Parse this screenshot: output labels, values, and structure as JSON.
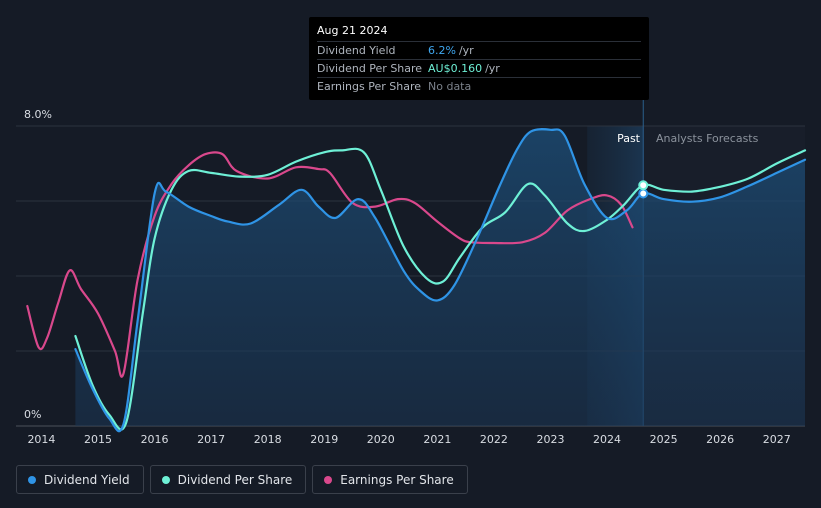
{
  "tooltip": {
    "date": "Aug 21 2024",
    "rows": [
      {
        "label": "Dividend Yield",
        "value": "6.2%",
        "unit": "/yr",
        "color": "#3fa6ee"
      },
      {
        "label": "Dividend Per Share",
        "value": "AU$0.160",
        "unit": "/yr",
        "color": "#6ef0d6"
      },
      {
        "label": "Earnings Per Share",
        "value": "No data",
        "unit": "",
        "color": "#7b818a"
      }
    ]
  },
  "regions": {
    "past": "Past",
    "forecast": "Analysts Forecasts"
  },
  "legend": [
    {
      "label": "Dividend Yield",
      "color": "#2f94e6"
    },
    {
      "label": "Dividend Per Share",
      "color": "#6ef0d6"
    },
    {
      "label": "Earnings Per Share",
      "color": "#d9488c"
    }
  ],
  "chart_data": {
    "type": "line",
    "y_tick_labels": [
      "8.0%",
      "0%"
    ],
    "ylim": [
      0,
      8
    ],
    "xlim": [
      2013.55,
      2027.5
    ],
    "x_ticks": [
      2014,
      2015,
      2016,
      2017,
      2018,
      2019,
      2020,
      2021,
      2022,
      2023,
      2024,
      2025,
      2026,
      2027
    ],
    "today": 2024.64,
    "past_band_start": 2023.65,
    "gridlines": [
      0,
      2,
      4,
      6,
      8
    ],
    "series": [
      {
        "name": "Dividend Yield",
        "color": "#2f94e6",
        "fill": true,
        "points": [
          [
            2014.6,
            2.05
          ],
          [
            2014.9,
            1.0
          ],
          [
            2015.2,
            0.2
          ],
          [
            2015.45,
            0.05
          ],
          [
            2015.7,
            2.8
          ],
          [
            2016.0,
            6.2
          ],
          [
            2016.2,
            6.25
          ],
          [
            2016.6,
            5.85
          ],
          [
            2017.0,
            5.6
          ],
          [
            2017.3,
            5.45
          ],
          [
            2017.7,
            5.4
          ],
          [
            2018.2,
            5.9
          ],
          [
            2018.6,
            6.3
          ],
          [
            2018.9,
            5.85
          ],
          [
            2019.2,
            5.55
          ],
          [
            2019.6,
            6.05
          ],
          [
            2019.9,
            5.55
          ],
          [
            2020.4,
            4.15
          ],
          [
            2020.7,
            3.6
          ],
          [
            2021.0,
            3.35
          ],
          [
            2021.3,
            3.75
          ],
          [
            2021.7,
            5.0
          ],
          [
            2022.1,
            6.4
          ],
          [
            2022.4,
            7.35
          ],
          [
            2022.65,
            7.85
          ],
          [
            2023.0,
            7.9
          ],
          [
            2023.25,
            7.75
          ],
          [
            2023.6,
            6.45
          ],
          [
            2024.0,
            5.55
          ],
          [
            2024.35,
            5.75
          ],
          [
            2024.64,
            6.2
          ],
          [
            2025.0,
            6.05
          ],
          [
            2025.5,
            5.98
          ],
          [
            2026.0,
            6.1
          ],
          [
            2026.5,
            6.4
          ],
          [
            2027.0,
            6.75
          ],
          [
            2027.5,
            7.1
          ]
        ]
      },
      {
        "name": "Dividend Per Share",
        "color": "#6ef0d6",
        "points": [
          [
            2014.6,
            2.4
          ],
          [
            2014.9,
            1.1
          ],
          [
            2015.2,
            0.3
          ],
          [
            2015.5,
            0.1
          ],
          [
            2015.8,
            3.1
          ],
          [
            2016.0,
            5.0
          ],
          [
            2016.3,
            6.3
          ],
          [
            2016.6,
            6.8
          ],
          [
            2017.0,
            6.75
          ],
          [
            2017.5,
            6.65
          ],
          [
            2018.0,
            6.7
          ],
          [
            2018.5,
            7.05
          ],
          [
            2019.0,
            7.3
          ],
          [
            2019.3,
            7.35
          ],
          [
            2019.7,
            7.3
          ],
          [
            2020.0,
            6.3
          ],
          [
            2020.4,
            4.8
          ],
          [
            2020.8,
            3.95
          ],
          [
            2021.1,
            3.85
          ],
          [
            2021.4,
            4.5
          ],
          [
            2021.8,
            5.3
          ],
          [
            2022.2,
            5.7
          ],
          [
            2022.6,
            6.45
          ],
          [
            2022.9,
            6.15
          ],
          [
            2023.3,
            5.4
          ],
          [
            2023.6,
            5.2
          ],
          [
            2024.0,
            5.5
          ],
          [
            2024.3,
            5.9
          ],
          [
            2024.64,
            6.42
          ],
          [
            2025.0,
            6.3
          ],
          [
            2025.5,
            6.25
          ],
          [
            2026.0,
            6.38
          ],
          [
            2026.5,
            6.6
          ],
          [
            2027.0,
            7.0
          ],
          [
            2027.5,
            7.35
          ]
        ]
      },
      {
        "name": "Earnings Per Share",
        "color": "#d9488c",
        "points": [
          [
            2013.75,
            3.2
          ],
          [
            2013.95,
            2.1
          ],
          [
            2014.1,
            2.35
          ],
          [
            2014.3,
            3.3
          ],
          [
            2014.5,
            4.15
          ],
          [
            2014.7,
            3.65
          ],
          [
            2015.0,
            3.0
          ],
          [
            2015.3,
            2.0
          ],
          [
            2015.45,
            1.4
          ],
          [
            2015.7,
            3.9
          ],
          [
            2016.0,
            5.6
          ],
          [
            2016.3,
            6.45
          ],
          [
            2016.6,
            6.95
          ],
          [
            2016.9,
            7.25
          ],
          [
            2017.2,
            7.25
          ],
          [
            2017.45,
            6.8
          ],
          [
            2018.0,
            6.6
          ],
          [
            2018.5,
            6.9
          ],
          [
            2018.9,
            6.85
          ],
          [
            2019.1,
            6.75
          ],
          [
            2019.5,
            5.95
          ],
          [
            2019.9,
            5.85
          ],
          [
            2020.3,
            6.05
          ],
          [
            2020.6,
            5.95
          ],
          [
            2021.0,
            5.45
          ],
          [
            2021.4,
            5.0
          ],
          [
            2021.6,
            4.9
          ],
          [
            2022.0,
            4.88
          ],
          [
            2022.5,
            4.9
          ],
          [
            2022.9,
            5.15
          ],
          [
            2023.3,
            5.75
          ],
          [
            2023.7,
            6.05
          ],
          [
            2024.0,
            6.15
          ],
          [
            2024.25,
            5.9
          ],
          [
            2024.45,
            5.3
          ]
        ]
      }
    ],
    "markers": [
      {
        "series": "Dividend Yield",
        "x": 2024.64,
        "y": 6.2
      },
      {
        "series": "Dividend Per Share",
        "x": 2024.64,
        "y": 6.42
      }
    ]
  }
}
